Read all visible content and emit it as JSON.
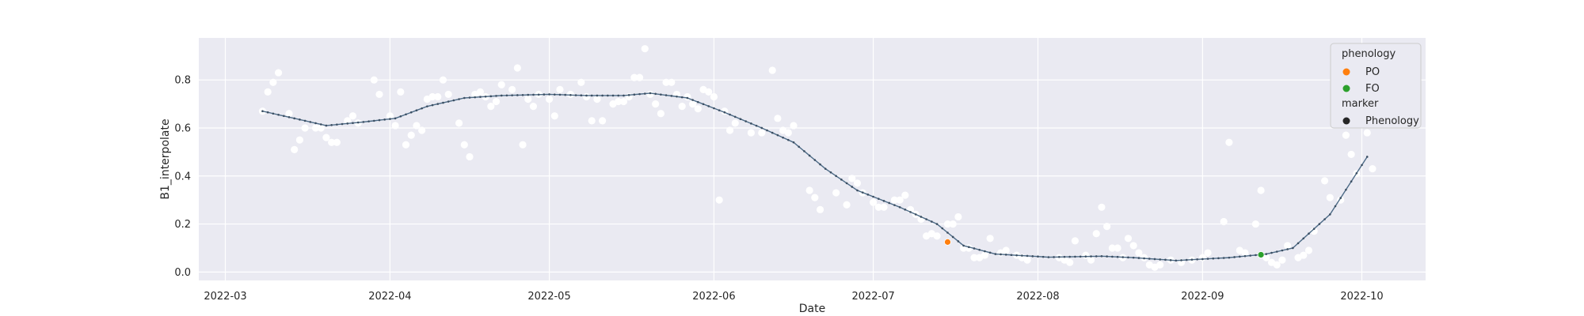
{
  "chart_data": {
    "type": "scatter",
    "title": "",
    "xlabel": "Date",
    "ylabel": "B1_interpolate",
    "x_ticks": [
      "2022-03",
      "2022-04",
      "2022-05",
      "2022-06",
      "2022-07",
      "2022-08",
      "2022-09",
      "2022-10"
    ],
    "y_ticks": [
      0.0,
      0.2,
      0.4,
      0.6,
      0.8
    ],
    "y_tick_labels": [
      "0.0",
      "0.2",
      "0.4",
      "0.6",
      "0.8"
    ],
    "xlim": [
      "2022-02-24",
      "2022-10-13"
    ],
    "ylim": [
      -0.035,
      0.975
    ],
    "grid": true,
    "legend_position": "top-right",
    "colors": {
      "background": "#eaeaf2",
      "grid": "#ffffff",
      "raw_points": "#ffffff",
      "fit_line": "#4c6a86",
      "PO": "#ff7f0e",
      "FO": "#2ca02c",
      "marker": "#262626"
    },
    "legend": {
      "title_hue": "phenology",
      "hue_items": [
        {
          "label": "PO",
          "color": "#ff7f0e"
        },
        {
          "label": "FO",
          "color": "#2ca02c"
        }
      ],
      "title_style": "marker",
      "style_items": [
        {
          "label": "Phenology",
          "color": "#262626"
        }
      ]
    },
    "fit_knots": [
      [
        "2022-03-08",
        0.67
      ],
      [
        "2022-03-13",
        0.645
      ],
      [
        "2022-03-20",
        0.61
      ],
      [
        "2022-03-27",
        0.625
      ],
      [
        "2022-04-02",
        0.64
      ],
      [
        "2022-04-08",
        0.69
      ],
      [
        "2022-04-15",
        0.725
      ],
      [
        "2022-04-22",
        0.735
      ],
      [
        "2022-05-01",
        0.74
      ],
      [
        "2022-05-08",
        0.735
      ],
      [
        "2022-05-15",
        0.735
      ],
      [
        "2022-05-20",
        0.745
      ],
      [
        "2022-05-27",
        0.725
      ],
      [
        "2022-06-03",
        0.665
      ],
      [
        "2022-06-10",
        0.6
      ],
      [
        "2022-06-16",
        0.54
      ],
      [
        "2022-06-22",
        0.43
      ],
      [
        "2022-06-28",
        0.34
      ],
      [
        "2022-07-06",
        0.27
      ],
      [
        "2022-07-13",
        0.2
      ],
      [
        "2022-07-18",
        0.11
      ],
      [
        "2022-07-24",
        0.075
      ],
      [
        "2022-08-03",
        0.062
      ],
      [
        "2022-08-13",
        0.066
      ],
      [
        "2022-08-19",
        0.06
      ],
      [
        "2022-08-27",
        0.048
      ],
      [
        "2022-09-06",
        0.06
      ],
      [
        "2022-09-13",
        0.075
      ],
      [
        "2022-09-18",
        0.1
      ],
      [
        "2022-09-25",
        0.24
      ],
      [
        "2022-10-02",
        0.48
      ]
    ],
    "raw_points": [
      [
        "2022-03-08",
        0.67
      ],
      [
        "2022-03-09",
        0.75
      ],
      [
        "2022-03-10",
        0.79
      ],
      [
        "2022-03-11",
        0.83
      ],
      [
        "2022-03-13",
        0.66
      ],
      [
        "2022-03-14",
        0.51
      ],
      [
        "2022-03-15",
        0.55
      ],
      [
        "2022-03-16",
        0.6
      ],
      [
        "2022-03-18",
        0.6
      ],
      [
        "2022-03-19",
        0.6
      ],
      [
        "2022-03-20",
        0.56
      ],
      [
        "2022-03-21",
        0.54
      ],
      [
        "2022-03-22",
        0.54
      ],
      [
        "2022-03-24",
        0.63
      ],
      [
        "2022-03-25",
        0.65
      ],
      [
        "2022-03-26",
        0.62
      ],
      [
        "2022-03-29",
        0.8
      ],
      [
        "2022-03-30",
        0.74
      ],
      [
        "2022-04-01",
        0.65
      ],
      [
        "2022-04-02",
        0.61
      ],
      [
        "2022-04-03",
        0.75
      ],
      [
        "2022-04-04",
        0.53
      ],
      [
        "2022-04-05",
        0.57
      ],
      [
        "2022-04-06",
        0.61
      ],
      [
        "2022-04-07",
        0.59
      ],
      [
        "2022-04-08",
        0.72
      ],
      [
        "2022-04-09",
        0.73
      ],
      [
        "2022-04-10",
        0.73
      ],
      [
        "2022-04-11",
        0.8
      ],
      [
        "2022-04-12",
        0.74
      ],
      [
        "2022-04-14",
        0.62
      ],
      [
        "2022-04-15",
        0.53
      ],
      [
        "2022-04-16",
        0.48
      ],
      [
        "2022-04-17",
        0.74
      ],
      [
        "2022-04-18",
        0.75
      ],
      [
        "2022-04-19",
        0.73
      ],
      [
        "2022-04-20",
        0.69
      ],
      [
        "2022-04-21",
        0.71
      ],
      [
        "2022-04-22",
        0.78
      ],
      [
        "2022-04-24",
        0.76
      ],
      [
        "2022-04-25",
        0.85
      ],
      [
        "2022-04-26",
        0.53
      ],
      [
        "2022-04-27",
        0.72
      ],
      [
        "2022-04-28",
        0.69
      ],
      [
        "2022-04-29",
        0.74
      ],
      [
        "2022-05-01",
        0.72
      ],
      [
        "2022-05-02",
        0.65
      ],
      [
        "2022-05-03",
        0.76
      ],
      [
        "2022-05-05",
        0.74
      ],
      [
        "2022-05-07",
        0.79
      ],
      [
        "2022-05-08",
        0.73
      ],
      [
        "2022-05-09",
        0.63
      ],
      [
        "2022-05-10",
        0.72
      ],
      [
        "2022-05-11",
        0.63
      ],
      [
        "2022-05-13",
        0.7
      ],
      [
        "2022-05-14",
        0.71
      ],
      [
        "2022-05-15",
        0.71
      ],
      [
        "2022-05-16",
        0.73
      ],
      [
        "2022-05-17",
        0.81
      ],
      [
        "2022-05-18",
        0.81
      ],
      [
        "2022-05-19",
        0.93
      ],
      [
        "2022-05-20",
        0.74
      ],
      [
        "2022-05-21",
        0.7
      ],
      [
        "2022-05-22",
        0.66
      ],
      [
        "2022-05-23",
        0.79
      ],
      [
        "2022-05-24",
        0.79
      ],
      [
        "2022-05-25",
        0.74
      ],
      [
        "2022-05-26",
        0.69
      ],
      [
        "2022-05-27",
        0.73
      ],
      [
        "2022-05-28",
        0.7
      ],
      [
        "2022-05-29",
        0.68
      ],
      [
        "2022-05-30",
        0.76
      ],
      [
        "2022-05-31",
        0.75
      ],
      [
        "2022-06-01",
        0.73
      ],
      [
        "2022-06-02",
        0.3
      ],
      [
        "2022-06-03",
        0.67
      ],
      [
        "2022-06-04",
        0.59
      ],
      [
        "2022-06-05",
        0.62
      ],
      [
        "2022-06-08",
        0.58
      ],
      [
        "2022-06-10",
        0.58
      ],
      [
        "2022-06-12",
        0.84
      ],
      [
        "2022-06-13",
        0.64
      ],
      [
        "2022-06-14",
        0.59
      ],
      [
        "2022-06-15",
        0.58
      ],
      [
        "2022-06-16",
        0.61
      ],
      [
        "2022-06-19",
        0.34
      ],
      [
        "2022-06-20",
        0.31
      ],
      [
        "2022-06-21",
        0.26
      ],
      [
        "2022-06-24",
        0.33
      ],
      [
        "2022-06-26",
        0.28
      ],
      [
        "2022-06-27",
        0.39
      ],
      [
        "2022-06-28",
        0.37
      ],
      [
        "2022-06-29",
        0.33
      ],
      [
        "2022-07-01",
        0.29
      ],
      [
        "2022-07-02",
        0.27
      ],
      [
        "2022-07-03",
        0.27
      ],
      [
        "2022-07-05",
        0.3
      ],
      [
        "2022-07-06",
        0.3
      ],
      [
        "2022-07-07",
        0.32
      ],
      [
        "2022-07-08",
        0.26
      ],
      [
        "2022-07-09",
        0.24
      ],
      [
        "2022-07-10",
        0.22
      ],
      [
        "2022-07-11",
        0.15
      ],
      [
        "2022-07-12",
        0.16
      ],
      [
        "2022-07-13",
        0.15
      ],
      [
        "2022-07-15",
        0.2
      ],
      [
        "2022-07-16",
        0.2
      ],
      [
        "2022-07-17",
        0.23
      ],
      [
        "2022-07-18",
        0.1
      ],
      [
        "2022-07-19",
        0.1
      ],
      [
        "2022-07-20",
        0.06
      ],
      [
        "2022-07-21",
        0.06
      ],
      [
        "2022-07-22",
        0.07
      ],
      [
        "2022-07-23",
        0.14
      ],
      [
        "2022-07-25",
        0.08
      ],
      [
        "2022-07-26",
        0.09
      ],
      [
        "2022-07-28",
        0.07
      ],
      [
        "2022-07-29",
        0.06
      ],
      [
        "2022-07-30",
        0.05
      ],
      [
        "2022-08-05",
        0.06
      ],
      [
        "2022-08-06",
        0.05
      ],
      [
        "2022-08-07",
        0.04
      ],
      [
        "2022-08-08",
        0.13
      ],
      [
        "2022-08-10",
        0.07
      ],
      [
        "2022-08-11",
        0.05
      ],
      [
        "2022-08-12",
        0.16
      ],
      [
        "2022-08-13",
        0.27
      ],
      [
        "2022-08-14",
        0.19
      ],
      [
        "2022-08-15",
        0.1
      ],
      [
        "2022-08-16",
        0.1
      ],
      [
        "2022-08-17",
        0.06
      ],
      [
        "2022-08-18",
        0.14
      ],
      [
        "2022-08-19",
        0.11
      ],
      [
        "2022-08-20",
        0.08
      ],
      [
        "2022-08-21",
        0.06
      ],
      [
        "2022-08-22",
        0.03
      ],
      [
        "2022-08-23",
        0.02
      ],
      [
        "2022-08-24",
        0.03
      ],
      [
        "2022-08-26",
        0.05
      ],
      [
        "2022-08-28",
        0.04
      ],
      [
        "2022-08-30",
        0.05
      ],
      [
        "2022-09-01",
        0.06
      ],
      [
        "2022-09-02",
        0.08
      ],
      [
        "2022-09-05",
        0.21
      ],
      [
        "2022-09-06",
        0.54
      ],
      [
        "2022-09-08",
        0.09
      ],
      [
        "2022-09-09",
        0.08
      ],
      [
        "2022-09-11",
        0.2
      ],
      [
        "2022-09-12",
        0.34
      ],
      [
        "2022-09-13",
        0.06
      ],
      [
        "2022-09-14",
        0.04
      ],
      [
        "2022-09-15",
        0.03
      ],
      [
        "2022-09-16",
        0.05
      ],
      [
        "2022-09-17",
        0.11
      ],
      [
        "2022-09-19",
        0.06
      ],
      [
        "2022-09-20",
        0.07
      ],
      [
        "2022-09-21",
        0.09
      ],
      [
        "2022-09-22",
        0.17
      ],
      [
        "2022-09-24",
        0.38
      ],
      [
        "2022-09-25",
        0.31
      ],
      [
        "2022-09-27",
        0.3
      ],
      [
        "2022-09-28",
        0.57
      ],
      [
        "2022-09-29",
        0.49
      ],
      [
        "2022-09-30",
        0.41
      ],
      [
        "2022-10-01",
        0.64
      ],
      [
        "2022-10-02",
        0.58
      ],
      [
        "2022-10-03",
        0.43
      ]
    ],
    "phenology_points": [
      {
        "label": "PO",
        "x": "2022-07-15",
        "y": 0.125,
        "color": "#ff7f0e"
      },
      {
        "label": "FO",
        "x": "2022-09-12",
        "y": 0.072,
        "color": "#2ca02c"
      }
    ]
  }
}
